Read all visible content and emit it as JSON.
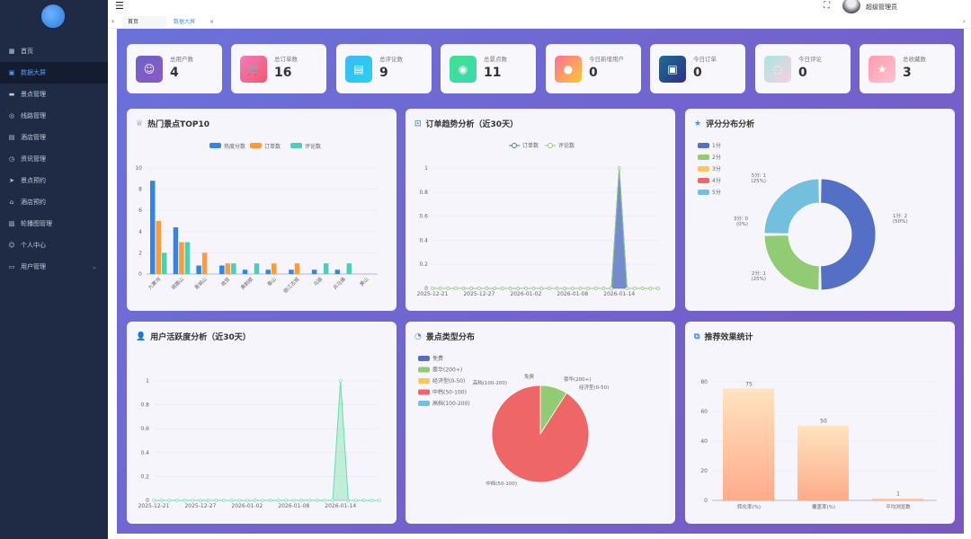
{
  "sidebar": {
    "items": [
      {
        "label": "首页",
        "icon": "grid-icon",
        "glyph": "▦"
      },
      {
        "label": "数据大屏",
        "icon": "monitor-icon",
        "glyph": "▣",
        "active": true
      },
      {
        "label": "景点管理",
        "icon": "scenery-icon",
        "glyph": "▬"
      },
      {
        "label": "线路管理",
        "icon": "route-icon",
        "glyph": "◎"
      },
      {
        "label": "酒店管理",
        "icon": "hotel-icon",
        "glyph": "▤"
      },
      {
        "label": "资讯管理",
        "icon": "news-icon",
        "glyph": "◷"
      },
      {
        "label": "景点预约",
        "icon": "send-icon",
        "glyph": "➤"
      },
      {
        "label": "酒店预约",
        "icon": "home-icon",
        "glyph": "⌂"
      },
      {
        "label": "轮播图管理",
        "icon": "image-icon",
        "glyph": "▨"
      },
      {
        "label": "个人中心",
        "icon": "user-icon",
        "glyph": "☺"
      },
      {
        "label": "用户管理",
        "icon": "users-icon",
        "glyph": "▭",
        "chevron": "⌄"
      }
    ]
  },
  "topbar": {
    "menu": "☰",
    "fullscreen": "⛶",
    "username": "超级管理员"
  },
  "tabs": [
    {
      "label": "首页"
    },
    {
      "label": "数据大屏",
      "close": "×"
    }
  ],
  "stats": [
    {
      "label": "总用户数",
      "value": "4",
      "icon": "user-icon",
      "glyph": "☺",
      "bg": "linear-gradient(135deg,#6e62c9,#8a5cc0)"
    },
    {
      "label": "总订单数",
      "value": "16",
      "icon": "cart-icon",
      "glyph": "🛒",
      "bg": "linear-gradient(135deg,#f07bbd,#f5576c)"
    },
    {
      "label": "总评论数",
      "value": "9",
      "icon": "message-icon",
      "glyph": "▤",
      "bg": "linear-gradient(135deg,#3fb8f5,#22d3f0)"
    },
    {
      "label": "总景点数",
      "value": "11",
      "icon": "location-icon",
      "glyph": "◉",
      "bg": "linear-gradient(135deg,#43e08f,#38d9b0)"
    },
    {
      "label": "今日新增用户",
      "value": "0",
      "icon": "user-add-icon",
      "glyph": "●",
      "bg": "linear-gradient(135deg,#fa709a,#fdc830)"
    },
    {
      "label": "今日订单",
      "value": "0",
      "icon": "bag-icon",
      "glyph": "▣",
      "bg": "linear-gradient(135deg,#1e6e8e,#2c2f8a)"
    },
    {
      "label": "今日评论",
      "value": "0",
      "icon": "chat-icon",
      "glyph": "◌",
      "bg": "linear-gradient(135deg,#a8e6e0,#f9d0e0)"
    },
    {
      "label": "总收藏数",
      "value": "3",
      "icon": "star-icon",
      "glyph": "★",
      "bg": "linear-gradient(135deg,#ff9aae,#ffc3d0)"
    }
  ],
  "panels": {
    "top10": {
      "title": "热门景点TOP10",
      "icon": "trophy-icon",
      "glyph": "♕"
    },
    "orders": {
      "title": "订单趋势分析（近30天）",
      "icon": "chart-icon",
      "glyph": "⊡"
    },
    "rating": {
      "title": "评分分布分析",
      "icon": "star-icon",
      "glyph": "★"
    },
    "activity": {
      "title": "用户活跃度分析（近30天）",
      "icon": "user-icon",
      "glyph": "👤"
    },
    "types": {
      "title": "景点类型分布",
      "icon": "pie-icon",
      "glyph": "◔"
    },
    "recommend": {
      "title": "推荐效果统计",
      "icon": "recommend-icon",
      "glyph": "⧉"
    }
  },
  "chart_data": [
    {
      "id": "top10",
      "type": "bar",
      "categories": [
        "九寨沟",
        "峨眉山",
        "青城山",
        "故宫",
        "黄鹤楼",
        "泰山",
        "丽江古城",
        "乌镇",
        "兵马俑",
        "黄山"
      ],
      "series": [
        {
          "name": "热度分数",
          "color": "#2f86e8",
          "values": [
            8.8,
            4.4,
            0.8,
            0.8,
            0.4,
            0.4,
            0.4,
            0.4,
            0.4,
            0
          ]
        },
        {
          "name": "订单数",
          "color": "#fb9b3a",
          "values": [
            5,
            3,
            2,
            1,
            0,
            1,
            1,
            0,
            0,
            0
          ]
        },
        {
          "name": "评论数",
          "color": "#4ecdb8",
          "values": [
            2,
            3,
            0,
            1,
            1,
            0,
            0,
            1,
            1,
            0
          ]
        }
      ],
      "ylim": [
        0,
        10
      ],
      "yticks": [
        0,
        2,
        4,
        6,
        8,
        10
      ],
      "legend": "top",
      "grid": true
    },
    {
      "id": "orders",
      "type": "line",
      "x": [
        "2025-12-21",
        "2025-12-22",
        "2025-12-23",
        "2025-12-24",
        "2025-12-25",
        "2025-12-26",
        "2025-12-27",
        "2025-12-28",
        "2025-12-29",
        "2025-12-30",
        "2025-12-31",
        "2026-01-01",
        "2026-01-02",
        "2026-01-03",
        "2026-01-04",
        "2026-01-05",
        "2026-01-06",
        "2026-01-07",
        "2026-01-08",
        "2026-01-09",
        "2026-01-10",
        "2026-01-11",
        "2026-01-12",
        "2026-01-13",
        "2026-01-14",
        "2026-01-15",
        "2026-01-16",
        "2026-01-17",
        "2026-01-18",
        "2026-01-19"
      ],
      "xticks": [
        "2025-12-21",
        "2025-12-27",
        "2026-01-02",
        "2026-01-08",
        "2026-01-14"
      ],
      "series": [
        {
          "name": "订单数",
          "color": "#5470c6",
          "area": true,
          "values": [
            0,
            0,
            0,
            0,
            0,
            0,
            0,
            0,
            0,
            0,
            0,
            0,
            0,
            0,
            0,
            0,
            0,
            0,
            0,
            0,
            0,
            0,
            0,
            0,
            1,
            0,
            0,
            0,
            0,
            0
          ]
        },
        {
          "name": "评论数",
          "color": "#91cc75",
          "values": [
            0,
            0,
            0,
            0,
            0,
            0,
            0,
            0,
            0,
            0,
            0,
            0,
            0,
            0,
            0,
            0,
            0,
            0,
            0,
            0,
            0,
            0,
            0,
            0,
            1,
            0,
            0,
            0,
            0,
            0
          ]
        }
      ],
      "ylim": [
        0,
        1
      ],
      "yticks": [
        0,
        0.2,
        0.4,
        0.6,
        0.8,
        1
      ],
      "legend": "top",
      "grid": true
    },
    {
      "id": "rating",
      "type": "pie",
      "donut": true,
      "legend": "left",
      "slices": [
        {
          "name": "1分",
          "value": 2,
          "pct": "50%",
          "color": "#5470c6"
        },
        {
          "name": "2分",
          "value": 1,
          "pct": "25%",
          "color": "#91cc75"
        },
        {
          "name": "3分",
          "value": 0,
          "pct": "0%",
          "color": "#fac858"
        },
        {
          "name": "4分",
          "value": 0,
          "pct": "0%",
          "color": "#ee6666"
        },
        {
          "name": "5分",
          "value": 1,
          "pct": "25%",
          "color": "#73c0de"
        }
      ]
    },
    {
      "id": "activity",
      "type": "line",
      "x": [
        "2025-12-21",
        "2025-12-22",
        "2025-12-23",
        "2025-12-24",
        "2025-12-25",
        "2025-12-26",
        "2025-12-27",
        "2025-12-28",
        "2025-12-29",
        "2025-12-30",
        "2025-12-31",
        "2026-01-01",
        "2026-01-02",
        "2026-01-03",
        "2026-01-04",
        "2026-01-05",
        "2026-01-06",
        "2026-01-07",
        "2026-01-08",
        "2026-01-09",
        "2026-01-10",
        "2026-01-11",
        "2026-01-12",
        "2026-01-13",
        "2026-01-14",
        "2026-01-15",
        "2026-01-16",
        "2026-01-17",
        "2026-01-18",
        "2026-01-19"
      ],
      "xticks": [
        "2025-12-21",
        "2025-12-27",
        "2026-01-02",
        "2026-01-08",
        "2026-01-14"
      ],
      "series": [
        {
          "color": "#5fe3a1",
          "area": true,
          "values": [
            0,
            0,
            0,
            0,
            0,
            0,
            0,
            0,
            0,
            0,
            0,
            0,
            0,
            0,
            0,
            0,
            0,
            0,
            0,
            0,
            0,
            0,
            0,
            0,
            1,
            0,
            0,
            0,
            0,
            0
          ]
        }
      ],
      "ylim": [
        0,
        1
      ],
      "yticks": [
        0,
        0.2,
        0.4,
        0.6,
        0.8,
        1
      ],
      "grid": true
    },
    {
      "id": "types",
      "type": "pie",
      "legend": "left",
      "slices": [
        {
          "name": "免费",
          "value": 0,
          "color": "#5470c6"
        },
        {
          "name": "豪华(200+)",
          "value": 1,
          "color": "#91cc75"
        },
        {
          "name": "经济型(0-50)",
          "value": 0,
          "color": "#fac858"
        },
        {
          "name": "中档(50-100)",
          "value": 10,
          "color": "#ee6666"
        },
        {
          "name": "高档(100-200)",
          "value": 0,
          "color": "#73c0de"
        }
      ]
    },
    {
      "id": "recommend",
      "type": "bar",
      "categories": [
        "转化率(%)",
        "覆盖率(%)",
        "平均浏览数"
      ],
      "values": [
        75,
        50,
        1
      ],
      "ylim": [
        0,
        80
      ],
      "yticks": [
        0,
        20,
        40,
        60,
        80
      ],
      "color": "#ffb08a",
      "grid": true,
      "data_labels": true
    }
  ]
}
